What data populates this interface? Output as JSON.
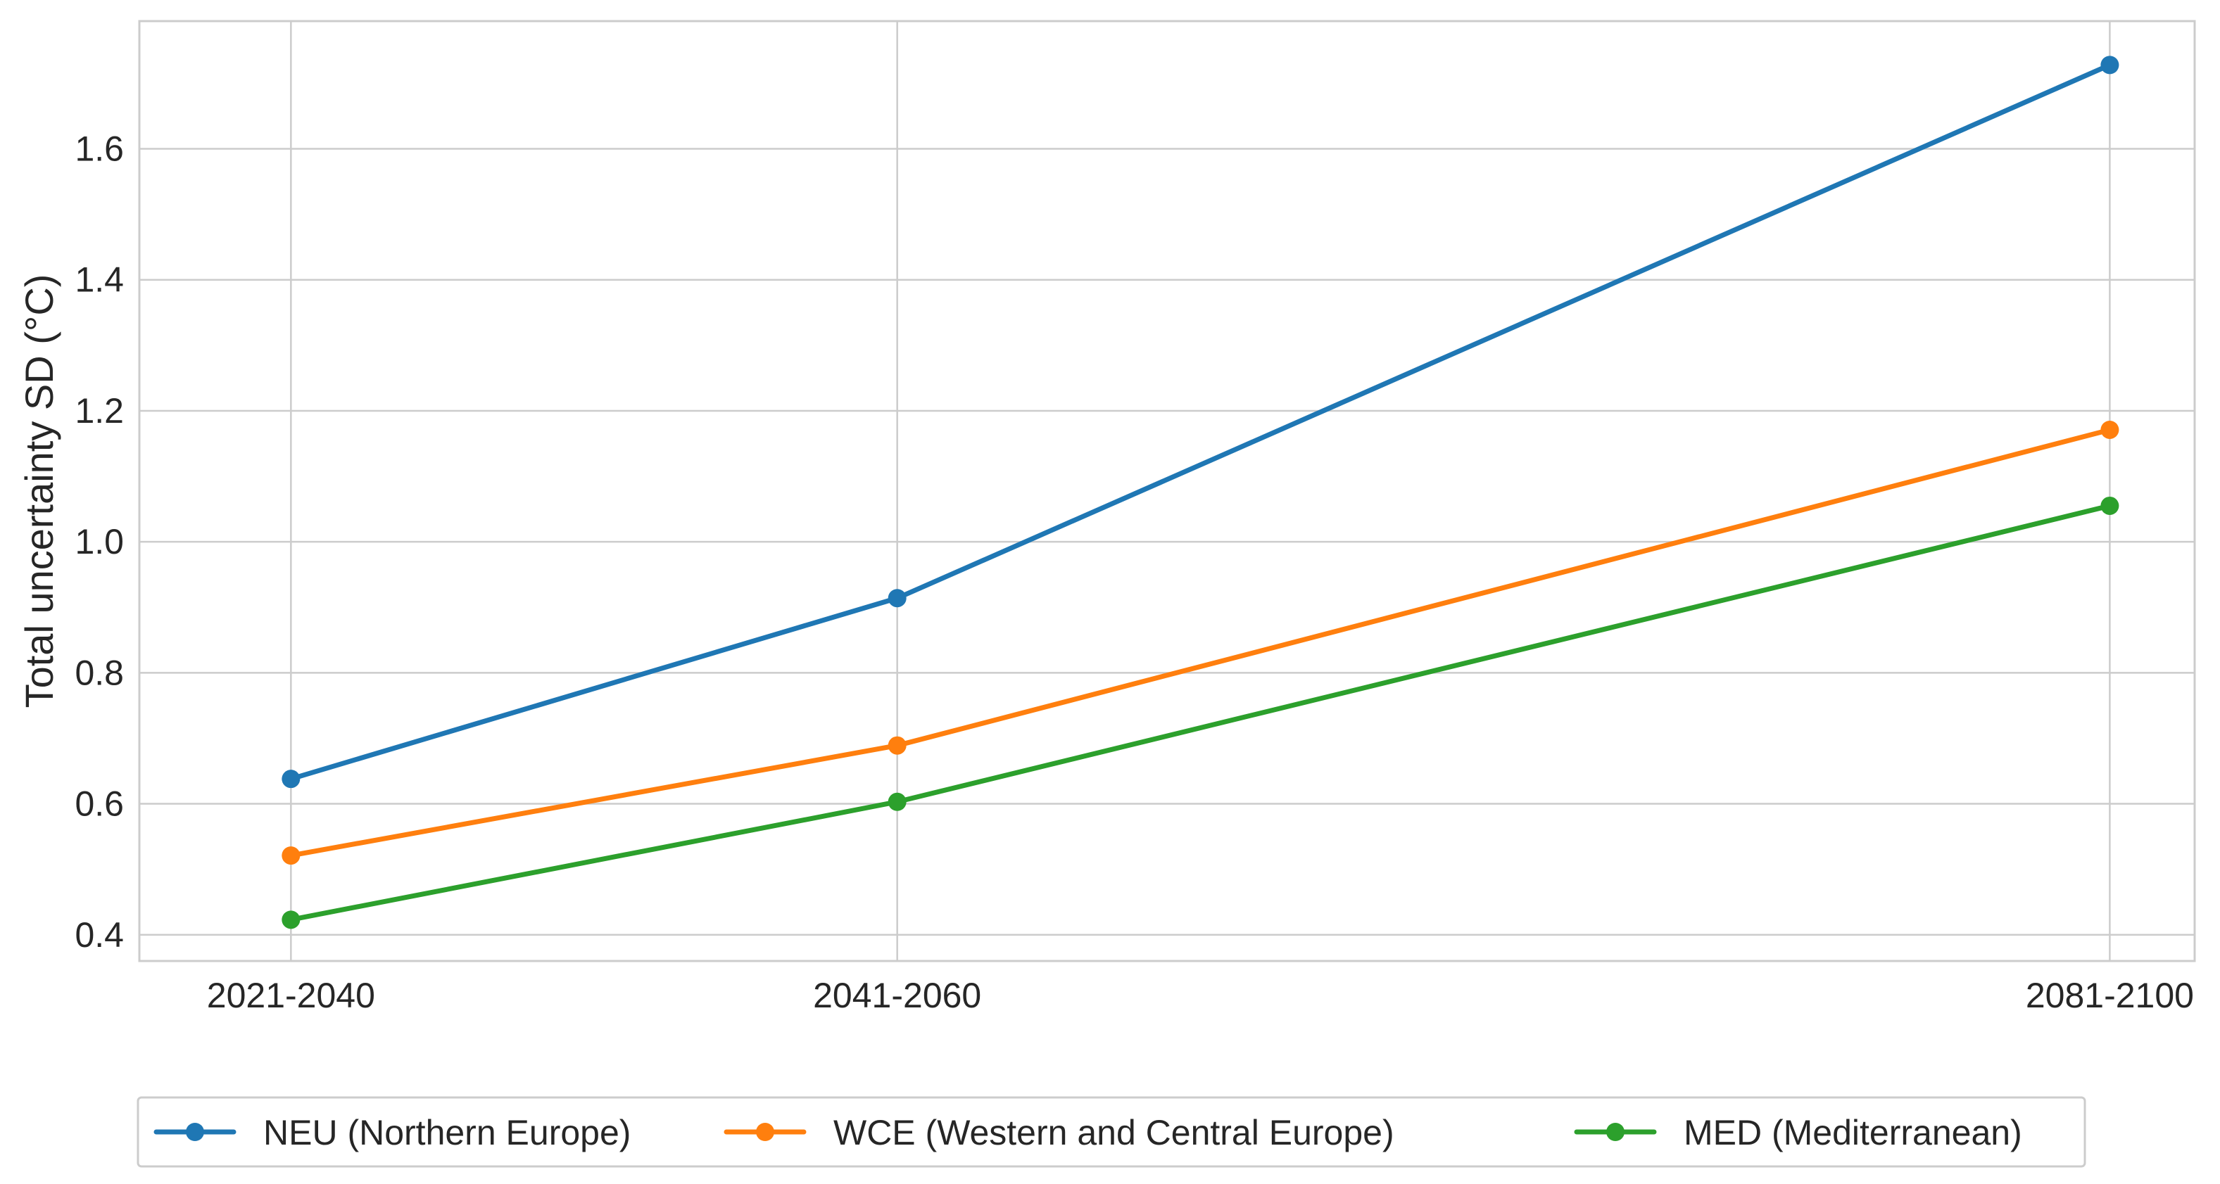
{
  "chart_data": {
    "type": "line",
    "title": "",
    "xlabel": "",
    "ylabel": "Total uncertainty SD (°C)",
    "categories": [
      "2021-2040",
      "2041-2060",
      "2081-2100"
    ],
    "x": [
      2030,
      2050,
      2090
    ],
    "ylim": [
      0.36,
      1.795
    ],
    "yticks": [
      0.4,
      0.6,
      0.8,
      1.0,
      1.2,
      1.4,
      1.6
    ],
    "ytick_labels": [
      "0.4",
      "0.6",
      "0.8",
      "1.0",
      "1.2",
      "1.4",
      "1.6"
    ],
    "grid": true,
    "legend_position": "bottom-center",
    "series": [
      {
        "name": "NEU (Northern Europe)",
        "color": "#1f77b4",
        "values": [
          0.638,
          0.914,
          1.728
        ]
      },
      {
        "name": "WCE (Western and Central Europe)",
        "color": "#ff7f0e",
        "values": [
          0.521,
          0.689,
          1.171
        ]
      },
      {
        "name": "MED (Mediterranean)",
        "color": "#2ca02c",
        "values": [
          0.423,
          0.603,
          1.055
        ]
      }
    ]
  }
}
